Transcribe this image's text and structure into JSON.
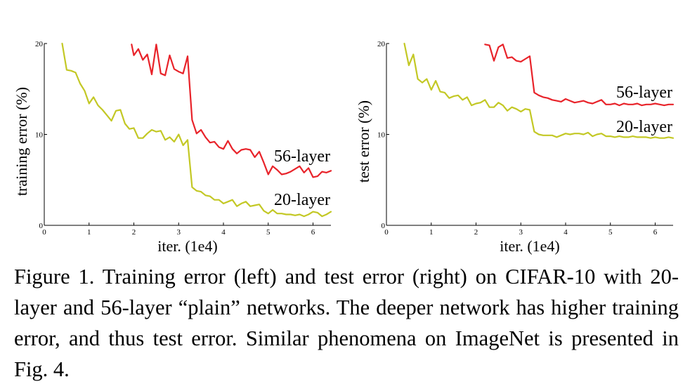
{
  "caption": "Figure 1. Training error (left) and test error (right) on CIFAR-10 with 20-layer and 56-layer “plain” networks. The deeper network has higher training error, and thus test error. Similar phenomena on ImageNet is presented in Fig. 4.",
  "colors": {
    "layer56": "#e8232a",
    "layer20": "#c3c825"
  },
  "chart_data": [
    {
      "type": "line",
      "xlabel": "iter. (1e4)",
      "ylabel": "training error (%)",
      "xlim": [
        0,
        6.4
      ],
      "ylim": [
        0,
        20
      ],
      "x_ticks": [
        "0",
        "1",
        "2",
        "3",
        "4",
        "5",
        "6"
      ],
      "y_ticks": [
        "0",
        "10",
        "20"
      ],
      "series": [
        {
          "name": "56-layer",
          "color": "#e8232a",
          "points": [
            [
              1.95,
              19.9
            ],
            [
              2.0,
              18.7
            ],
            [
              2.1,
              19.4
            ],
            [
              2.2,
              18.2
            ],
            [
              2.3,
              18.8
            ],
            [
              2.4,
              16.6
            ],
            [
              2.5,
              19.9
            ],
            [
              2.6,
              16.7
            ],
            [
              2.7,
              16.5
            ],
            [
              2.8,
              18.7
            ],
            [
              2.9,
              17.2
            ],
            [
              3.0,
              16.9
            ],
            [
              3.1,
              16.7
            ],
            [
              3.2,
              18.6
            ],
            [
              3.3,
              11.6
            ],
            [
              3.4,
              10.1
            ],
            [
              3.5,
              10.5
            ],
            [
              3.6,
              9.7
            ],
            [
              3.7,
              9.1
            ],
            [
              3.8,
              9.2
            ],
            [
              3.9,
              8.6
            ],
            [
              4.0,
              8.4
            ],
            [
              4.1,
              9.3
            ],
            [
              4.2,
              8.4
            ],
            [
              4.3,
              7.9
            ],
            [
              4.4,
              8.3
            ],
            [
              4.5,
              8.4
            ],
            [
              4.6,
              8.3
            ],
            [
              4.7,
              7.5
            ],
            [
              4.8,
              8.1
            ],
            [
              4.9,
              6.9
            ],
            [
              5.0,
              5.6
            ],
            [
              5.1,
              6.5
            ],
            [
              5.2,
              6.1
            ],
            [
              5.3,
              5.6
            ],
            [
              5.4,
              5.7
            ],
            [
              5.5,
              5.9
            ],
            [
              5.6,
              6.2
            ],
            [
              5.7,
              6.5
            ],
            [
              5.8,
              5.8
            ],
            [
              5.9,
              6.3
            ],
            [
              6.0,
              5.3
            ],
            [
              6.1,
              5.4
            ],
            [
              6.2,
              5.9
            ],
            [
              6.3,
              5.8
            ],
            [
              6.4,
              6.0
            ]
          ]
        },
        {
          "name": "20-layer",
          "color": "#c3c825",
          "points": [
            [
              0.4,
              20.0
            ],
            [
              0.5,
              17.1
            ],
            [
              0.6,
              17.0
            ],
            [
              0.7,
              16.8
            ],
            [
              0.8,
              15.6
            ],
            [
              0.9,
              14.8
            ],
            [
              1.0,
              13.4
            ],
            [
              1.1,
              14.1
            ],
            [
              1.2,
              13.2
            ],
            [
              1.3,
              12.7
            ],
            [
              1.4,
              12.1
            ],
            [
              1.5,
              11.5
            ],
            [
              1.6,
              12.6
            ],
            [
              1.7,
              12.7
            ],
            [
              1.8,
              11.2
            ],
            [
              1.9,
              10.6
            ],
            [
              2.0,
              10.7
            ],
            [
              2.1,
              9.6
            ],
            [
              2.2,
              9.6
            ],
            [
              2.3,
              10.1
            ],
            [
              2.4,
              10.5
            ],
            [
              2.5,
              10.3
            ],
            [
              2.6,
              10.4
            ],
            [
              2.7,
              9.4
            ],
            [
              2.8,
              9.7
            ],
            [
              2.9,
              9.2
            ],
            [
              3.0,
              10.0
            ],
            [
              3.1,
              8.8
            ],
            [
              3.2,
              9.4
            ],
            [
              3.3,
              4.2
            ],
            [
              3.4,
              3.8
            ],
            [
              3.5,
              3.7
            ],
            [
              3.6,
              3.3
            ],
            [
              3.7,
              3.2
            ],
            [
              3.8,
              2.8
            ],
            [
              3.9,
              2.8
            ],
            [
              4.0,
              2.4
            ],
            [
              4.1,
              2.6
            ],
            [
              4.2,
              2.8
            ],
            [
              4.3,
              2.1
            ],
            [
              4.4,
              2.4
            ],
            [
              4.5,
              2.6
            ],
            [
              4.6,
              2.1
            ],
            [
              4.7,
              2.2
            ],
            [
              4.8,
              2.3
            ],
            [
              4.9,
              1.6
            ],
            [
              5.0,
              1.3
            ],
            [
              5.1,
              1.7
            ],
            [
              5.2,
              1.3
            ],
            [
              5.3,
              1.3
            ],
            [
              5.4,
              1.2
            ],
            [
              5.5,
              1.2
            ],
            [
              5.6,
              1.1
            ],
            [
              5.7,
              1.2
            ],
            [
              5.8,
              1.0
            ],
            [
              5.9,
              1.2
            ],
            [
              6.0,
              1.5
            ],
            [
              6.1,
              1.4
            ],
            [
              6.2,
              1.0
            ],
            [
              6.3,
              1.2
            ],
            [
              6.4,
              1.5
            ]
          ]
        }
      ]
    },
    {
      "type": "line",
      "xlabel": "iter. (1e4)",
      "ylabel": "test error (%)",
      "xlim": [
        0,
        6.4
      ],
      "ylim": [
        0,
        20
      ],
      "x_ticks": [
        "0",
        "1",
        "2",
        "3",
        "4",
        "5",
        "6"
      ],
      "y_ticks": [
        "0",
        "10",
        "20"
      ],
      "series": [
        {
          "name": "56-layer",
          "color": "#e8232a",
          "points": [
            [
              2.2,
              19.9
            ],
            [
              2.3,
              19.8
            ],
            [
              2.4,
              18.1
            ],
            [
              2.5,
              19.6
            ],
            [
              2.6,
              19.9
            ],
            [
              2.7,
              18.4
            ],
            [
              2.8,
              18.5
            ],
            [
              2.9,
              18.1
            ],
            [
              3.0,
              18.0
            ],
            [
              3.1,
              18.3
            ],
            [
              3.2,
              18.6
            ],
            [
              3.3,
              14.6
            ],
            [
              3.4,
              14.3
            ],
            [
              3.5,
              14.1
            ],
            [
              3.6,
              14.0
            ],
            [
              3.7,
              13.8
            ],
            [
              3.8,
              13.7
            ],
            [
              3.9,
              13.6
            ],
            [
              4.0,
              13.9
            ],
            [
              4.1,
              13.7
            ],
            [
              4.2,
              13.5
            ],
            [
              4.3,
              13.6
            ],
            [
              4.4,
              13.7
            ],
            [
              4.5,
              13.5
            ],
            [
              4.6,
              13.4
            ],
            [
              4.7,
              13.6
            ],
            [
              4.8,
              13.8
            ],
            [
              4.9,
              13.3
            ],
            [
              5.0,
              13.3
            ],
            [
              5.1,
              13.4
            ],
            [
              5.2,
              13.2
            ],
            [
              5.3,
              13.4
            ],
            [
              5.4,
              13.3
            ],
            [
              5.5,
              13.3
            ],
            [
              5.6,
              13.4
            ],
            [
              5.7,
              13.2
            ],
            [
              5.8,
              13.3
            ],
            [
              5.9,
              13.3
            ],
            [
              6.0,
              13.4
            ],
            [
              6.1,
              13.3
            ],
            [
              6.2,
              13.2
            ],
            [
              6.3,
              13.3
            ],
            [
              6.4,
              13.3
            ]
          ]
        },
        {
          "name": "20-layer",
          "color": "#c3c825",
          "points": [
            [
              0.4,
              20.0
            ],
            [
              0.5,
              17.6
            ],
            [
              0.6,
              18.8
            ],
            [
              0.7,
              16.1
            ],
            [
              0.8,
              15.7
            ],
            [
              0.9,
              16.1
            ],
            [
              1.0,
              14.9
            ],
            [
              1.1,
              15.9
            ],
            [
              1.2,
              14.7
            ],
            [
              1.3,
              14.6
            ],
            [
              1.4,
              14.0
            ],
            [
              1.5,
              14.2
            ],
            [
              1.6,
              14.3
            ],
            [
              1.7,
              13.8
            ],
            [
              1.8,
              14.1
            ],
            [
              1.9,
              13.2
            ],
            [
              2.0,
              13.4
            ],
            [
              2.1,
              13.5
            ],
            [
              2.2,
              13.8
            ],
            [
              2.3,
              13.0
            ],
            [
              2.4,
              13.0
            ],
            [
              2.5,
              13.5
            ],
            [
              2.6,
              13.2
            ],
            [
              2.7,
              12.6
            ],
            [
              2.8,
              13.0
            ],
            [
              2.9,
              12.8
            ],
            [
              3.0,
              12.5
            ],
            [
              3.1,
              12.8
            ],
            [
              3.2,
              12.7
            ],
            [
              3.3,
              10.3
            ],
            [
              3.4,
              10.0
            ],
            [
              3.5,
              9.9
            ],
            [
              3.6,
              9.9
            ],
            [
              3.7,
              9.9
            ],
            [
              3.8,
              9.7
            ],
            [
              3.9,
              9.9
            ],
            [
              4.0,
              10.1
            ],
            [
              4.1,
              10.0
            ],
            [
              4.2,
              10.1
            ],
            [
              4.3,
              10.1
            ],
            [
              4.4,
              10.0
            ],
            [
              4.5,
              10.2
            ],
            [
              4.6,
              9.8
            ],
            [
              4.7,
              10.0
            ],
            [
              4.8,
              10.1
            ],
            [
              4.9,
              9.8
            ],
            [
              5.0,
              9.8
            ],
            [
              5.1,
              9.7
            ],
            [
              5.2,
              9.8
            ],
            [
              5.3,
              9.7
            ],
            [
              5.4,
              9.7
            ],
            [
              5.5,
              9.8
            ],
            [
              5.6,
              9.7
            ],
            [
              5.7,
              9.7
            ],
            [
              5.8,
              9.7
            ],
            [
              5.9,
              9.6
            ],
            [
              6.0,
              9.7
            ],
            [
              6.1,
              9.6
            ],
            [
              6.2,
              9.6
            ],
            [
              6.3,
              9.7
            ],
            [
              6.4,
              9.6
            ]
          ]
        }
      ]
    }
  ]
}
